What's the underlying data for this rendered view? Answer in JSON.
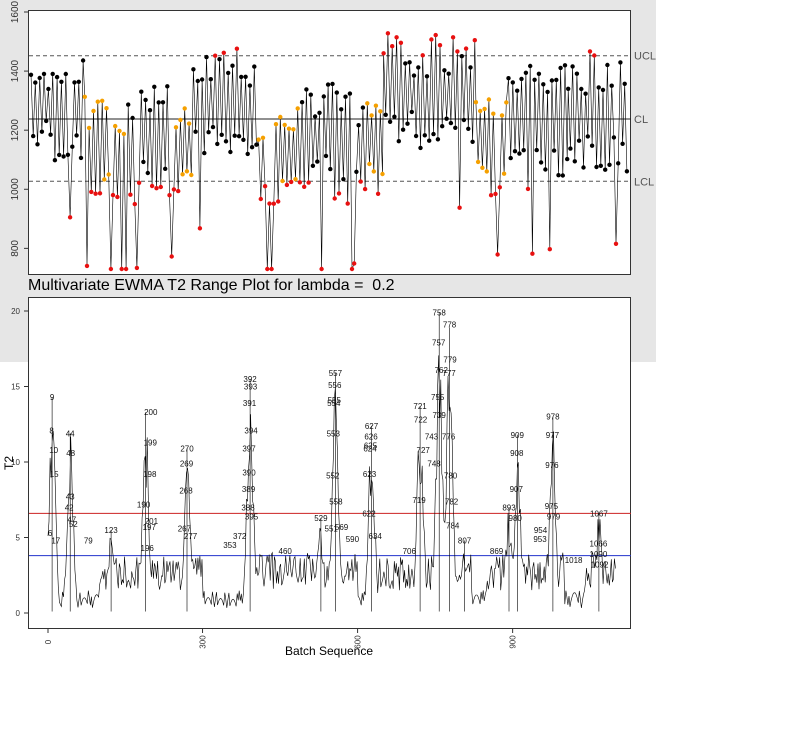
{
  "chart_data": [
    {
      "type": "scatter",
      "title": "",
      "xlabel": "",
      "ylabel": "",
      "xlim": [
        1,
        1100
      ],
      "ylim": [
        720,
        1600
      ],
      "yticks": [
        "800",
        "1000",
        "1200",
        "1400",
        "1600"
      ],
      "control_lines": [
        {
          "name": "UCL",
          "label": "UCL",
          "value": 1452,
          "style": "dashed",
          "color": "#555555"
        },
        {
          "name": "CL",
          "label": "CL",
          "value": 1238,
          "style": "solid",
          "color": "#222222"
        },
        {
          "name": "LCL",
          "label": "LCL",
          "value": 1027,
          "style": "dashed",
          "color": "#555555"
        }
      ],
      "colors": {
        "in_control": "#000000",
        "out_of_control": "#e81010",
        "run_warning": "#f5a000",
        "line": "#000000"
      },
      "segments": [
        {
          "start": 1,
          "end": 100,
          "mean": 1270,
          "amp": 170,
          "color": "black"
        },
        {
          "start": 100,
          "end": 180,
          "mean": 1120,
          "amp": 180,
          "color": "orange"
        },
        {
          "start": 180,
          "end": 260,
          "mean": 1150,
          "amp": 190,
          "color": "black"
        },
        {
          "start": 260,
          "end": 300,
          "mean": 1130,
          "amp": 150,
          "color": "orange"
        },
        {
          "start": 300,
          "end": 420,
          "mean": 1280,
          "amp": 190,
          "color": "black"
        },
        {
          "start": 420,
          "end": 500,
          "mean": 1120,
          "amp": 190,
          "color": "orange"
        },
        {
          "start": 500,
          "end": 620,
          "mean": 1170,
          "amp": 210,
          "color": "black"
        },
        {
          "start": 620,
          "end": 650,
          "mean": 1150,
          "amp": 160,
          "color": "orange"
        },
        {
          "start": 650,
          "end": 820,
          "mean": 1330,
          "amp": 190,
          "color": "black"
        },
        {
          "start": 820,
          "end": 880,
          "mean": 1140,
          "amp": 170,
          "color": "orange"
        },
        {
          "start": 880,
          "end": 990,
          "mean": 1230,
          "amp": 210,
          "color": "black"
        },
        {
          "start": 990,
          "end": 1100,
          "mean": 1250,
          "amp": 200,
          "color": "black"
        }
      ]
    },
    {
      "type": "line",
      "title": "Multivariate EWMA T2 Range Plot for lambda =  0.2",
      "xlabel": "Batch Sequence",
      "ylabel": "T2",
      "xlim": [
        1,
        1100
      ],
      "ylim": [
        0,
        20
      ],
      "xticks": [
        "0",
        "300",
        "600",
        "900"
      ],
      "yticks": [
        "0",
        "5",
        "10",
        "15",
        "20"
      ],
      "reference_lines": [
        {
          "name": "upper",
          "value": 6.6,
          "color": "#cc2222"
        },
        {
          "name": "lower",
          "value": 3.8,
          "color": "#2233cc"
        }
      ],
      "peaks": [
        {
          "x": 9,
          "y": 14.3
        },
        {
          "x": 44,
          "y": 11.9
        },
        {
          "x": 123,
          "y": 5.5
        },
        {
          "x": 190,
          "y": 13.3
        },
        {
          "x": 270,
          "y": 10.9
        },
        {
          "x": 392,
          "y": 15.5
        },
        {
          "x": 529,
          "y": 6.3
        },
        {
          "x": 557,
          "y": 15.9
        },
        {
          "x": 627,
          "y": 12.4
        },
        {
          "x": 721,
          "y": 13.7
        },
        {
          "x": 758,
          "y": 19.9
        },
        {
          "x": 778,
          "y": 18.9
        },
        {
          "x": 807,
          "y": 4.8
        },
        {
          "x": 893,
          "y": 7.0
        },
        {
          "x": 909,
          "y": 11.8
        },
        {
          "x": 978,
          "y": 13.0
        },
        {
          "x": 1067,
          "y": 6.6
        }
      ],
      "labels": [
        {
          "text": "9",
          "x": 9,
          "y": 14.3
        },
        {
          "text": "8",
          "x": 8,
          "y": 12.1
        },
        {
          "text": "10",
          "x": 12,
          "y": 10.8
        },
        {
          "text": "15",
          "x": 13,
          "y": 9.2
        },
        {
          "text": "6",
          "x": 5,
          "y": 5.3
        },
        {
          "text": "17",
          "x": 16,
          "y": 4.8
        },
        {
          "text": "44",
          "x": 44,
          "y": 11.9
        },
        {
          "text": "48",
          "x": 45,
          "y": 10.6
        },
        {
          "text": "43",
          "x": 44,
          "y": 7.7
        },
        {
          "text": "42",
          "x": 42,
          "y": 7.0
        },
        {
          "text": "47",
          "x": 47,
          "y": 6.2
        },
        {
          "text": "52",
          "x": 50,
          "y": 5.9
        },
        {
          "text": "79",
          "x": 79,
          "y": 4.8
        },
        {
          "text": "123",
          "x": 123,
          "y": 5.5
        },
        {
          "text": "190",
          "x": 186,
          "y": 7.2
        },
        {
          "text": "200",
          "x": 200,
          "y": 13.3
        },
        {
          "text": "199",
          "x": 199,
          "y": 11.3
        },
        {
          "text": "198",
          "x": 198,
          "y": 9.2
        },
        {
          "text": "201",
          "x": 201,
          "y": 6.1
        },
        {
          "text": "197",
          "x": 197,
          "y": 5.7
        },
        {
          "text": "270",
          "x": 270,
          "y": 10.9
        },
        {
          "text": "269",
          "x": 269,
          "y": 9.9
        },
        {
          "text": "268",
          "x": 268,
          "y": 8.1
        },
        {
          "text": "267",
          "x": 265,
          "y": 5.6
        },
        {
          "text": "277",
          "x": 277,
          "y": 5.1
        },
        {
          "text": "392",
          "x": 392,
          "y": 15.5
        },
        {
          "text": "393",
          "x": 393,
          "y": 15.0
        },
        {
          "text": "391",
          "x": 391,
          "y": 13.9
        },
        {
          "text": "394",
          "x": 394,
          "y": 12.1
        },
        {
          "text": "397",
          "x": 390,
          "y": 10.9
        },
        {
          "text": "390",
          "x": 390,
          "y": 9.3
        },
        {
          "text": "389",
          "x": 389,
          "y": 8.2
        },
        {
          "text": "388",
          "x": 388,
          "y": 7.0
        },
        {
          "text": "395",
          "x": 395,
          "y": 6.4
        },
        {
          "text": "372",
          "x": 372,
          "y": 5.1
        },
        {
          "text": "529",
          "x": 529,
          "y": 6.3
        },
        {
          "text": "551",
          "x": 549,
          "y": 5.6
        },
        {
          "text": "557",
          "x": 557,
          "y": 15.9
        },
        {
          "text": "556",
          "x": 556,
          "y": 15.1
        },
        {
          "text": "555",
          "x": 555,
          "y": 14.1
        },
        {
          "text": "554",
          "x": 554,
          "y": 13.9
        },
        {
          "text": "553",
          "x": 553,
          "y": 11.9
        },
        {
          "text": "552",
          "x": 552,
          "y": 9.1
        },
        {
          "text": "558",
          "x": 558,
          "y": 7.4
        },
        {
          "text": "569",
          "x": 569,
          "y": 5.7
        },
        {
          "text": "627",
          "x": 627,
          "y": 12.4
        },
        {
          "text": "626",
          "x": 626,
          "y": 11.7
        },
        {
          "text": "625",
          "x": 625,
          "y": 11.1
        },
        {
          "text": "624",
          "x": 624,
          "y": 10.9
        },
        {
          "text": "623",
          "x": 623,
          "y": 9.2
        },
        {
          "text": "622",
          "x": 622,
          "y": 6.6
        },
        {
          "text": "634",
          "x": 634,
          "y": 5.1
        },
        {
          "text": "758",
          "x": 758,
          "y": 19.9
        },
        {
          "text": "778",
          "x": 778,
          "y": 19.1
        },
        {
          "text": "757",
          "x": 757,
          "y": 17.9
        },
        {
          "text": "779",
          "x": 779,
          "y": 16.8
        },
        {
          "text": "762",
          "x": 762,
          "y": 16.1
        },
        {
          "text": "777",
          "x": 777,
          "y": 15.9
        },
        {
          "text": "755",
          "x": 755,
          "y": 14.3
        },
        {
          "text": "721",
          "x": 721,
          "y": 13.7
        },
        {
          "text": "722",
          "x": 722,
          "y": 12.8
        },
        {
          "text": "739",
          "x": 758,
          "y": 13.1
        },
        {
          "text": "743",
          "x": 743,
          "y": 11.7
        },
        {
          "text": "776",
          "x": 776,
          "y": 11.7
        },
        {
          "text": "727",
          "x": 727,
          "y": 10.8
        },
        {
          "text": "748",
          "x": 748,
          "y": 9.9
        },
        {
          "text": "780",
          "x": 780,
          "y": 9.1
        },
        {
          "text": "719",
          "x": 719,
          "y": 7.5
        },
        {
          "text": "782",
          "x": 782,
          "y": 7.4
        },
        {
          "text": "784",
          "x": 784,
          "y": 5.8
        },
        {
          "text": "807",
          "x": 807,
          "y": 4.8
        },
        {
          "text": "893",
          "x": 893,
          "y": 7.0
        },
        {
          "text": "909",
          "x": 909,
          "y": 11.8
        },
        {
          "text": "908",
          "x": 908,
          "y": 10.6
        },
        {
          "text": "907",
          "x": 907,
          "y": 8.2
        },
        {
          "text": "980",
          "x": 905,
          "y": 6.3
        },
        {
          "text": "978",
          "x": 978,
          "y": 13.0
        },
        {
          "text": "977",
          "x": 977,
          "y": 11.8
        },
        {
          "text": "976",
          "x": 976,
          "y": 9.8
        },
        {
          "text": "975",
          "x": 975,
          "y": 7.1
        },
        {
          "text": "979",
          "x": 979,
          "y": 6.4
        },
        {
          "text": "954",
          "x": 954,
          "y": 5.5
        },
        {
          "text": "953",
          "x": 953,
          "y": 4.9
        },
        {
          "text": "1067",
          "x": 1067,
          "y": 6.6
        },
        {
          "text": "1066",
          "x": 1066,
          "y": 4.6
        },
        {
          "text": "1090",
          "x": 1066,
          "y": 3.9
        },
        {
          "text": "1092",
          "x": 1068,
          "y": 3.2
        },
        {
          "text": "196",
          "x": 193,
          "y": 4.3
        },
        {
          "text": "353",
          "x": 353,
          "y": 4.5
        },
        {
          "text": "460",
          "x": 460,
          "y": 4.1
        },
        {
          "text": "590",
          "x": 590,
          "y": 4.9
        },
        {
          "text": "706",
          "x": 700,
          "y": 4.1
        },
        {
          "text": "869",
          "x": 869,
          "y": 4.1
        },
        {
          "text": "1018",
          "x": 1018,
          "y": 3.5
        }
      ]
    }
  ]
}
